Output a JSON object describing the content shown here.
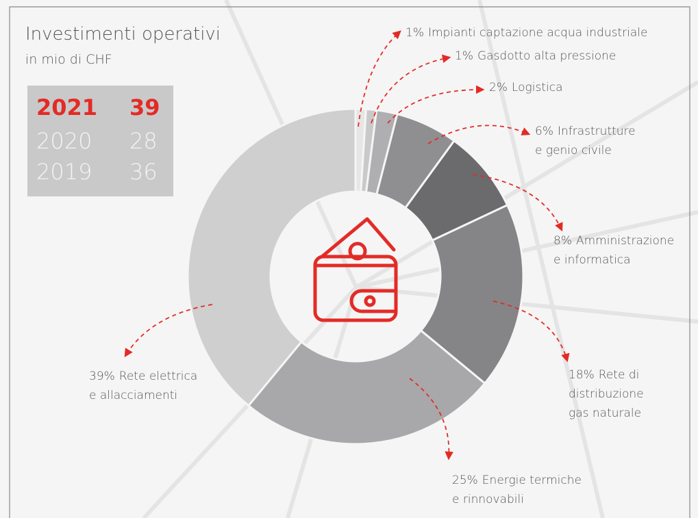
{
  "chart_data": {
    "type": "donut",
    "title": "Investimenti operativi",
    "subtitle": "in mio di CHF",
    "categories": [
      [
        "Impianti captazione acqua industriale"
      ],
      [
        "Gasdotto alta pressione"
      ],
      [
        "Logistica"
      ],
      [
        "Infrastrutture",
        "e genio civile"
      ],
      [
        "Amministrazione",
        "e informatica"
      ],
      [
        "Rete di",
        "distribuzione",
        "gas naturale"
      ],
      [
        "Energie termiche",
        "e rinnovabili"
      ],
      [
        "Rete elettrica",
        "e allacciamenti"
      ]
    ],
    "values": [
      1,
      1,
      2,
      6,
      8,
      18,
      25,
      39
    ],
    "value_labels": [
      "1%",
      "1%",
      "2%",
      "6%",
      "8%",
      "18%",
      "25%",
      "39%"
    ],
    "colors": [
      "#e6e6e7",
      "#c9c9ca",
      "#afafb1",
      "#8f8f91",
      "#6b6b6e",
      "#858587",
      "#a8a8aa",
      "#cfcfd0"
    ],
    "summary_table": [
      {
        "year": "2021",
        "value": 39
      },
      {
        "year": "2020",
        "value": 28
      },
      {
        "year": "2019",
        "value": 36
      }
    ]
  }
}
